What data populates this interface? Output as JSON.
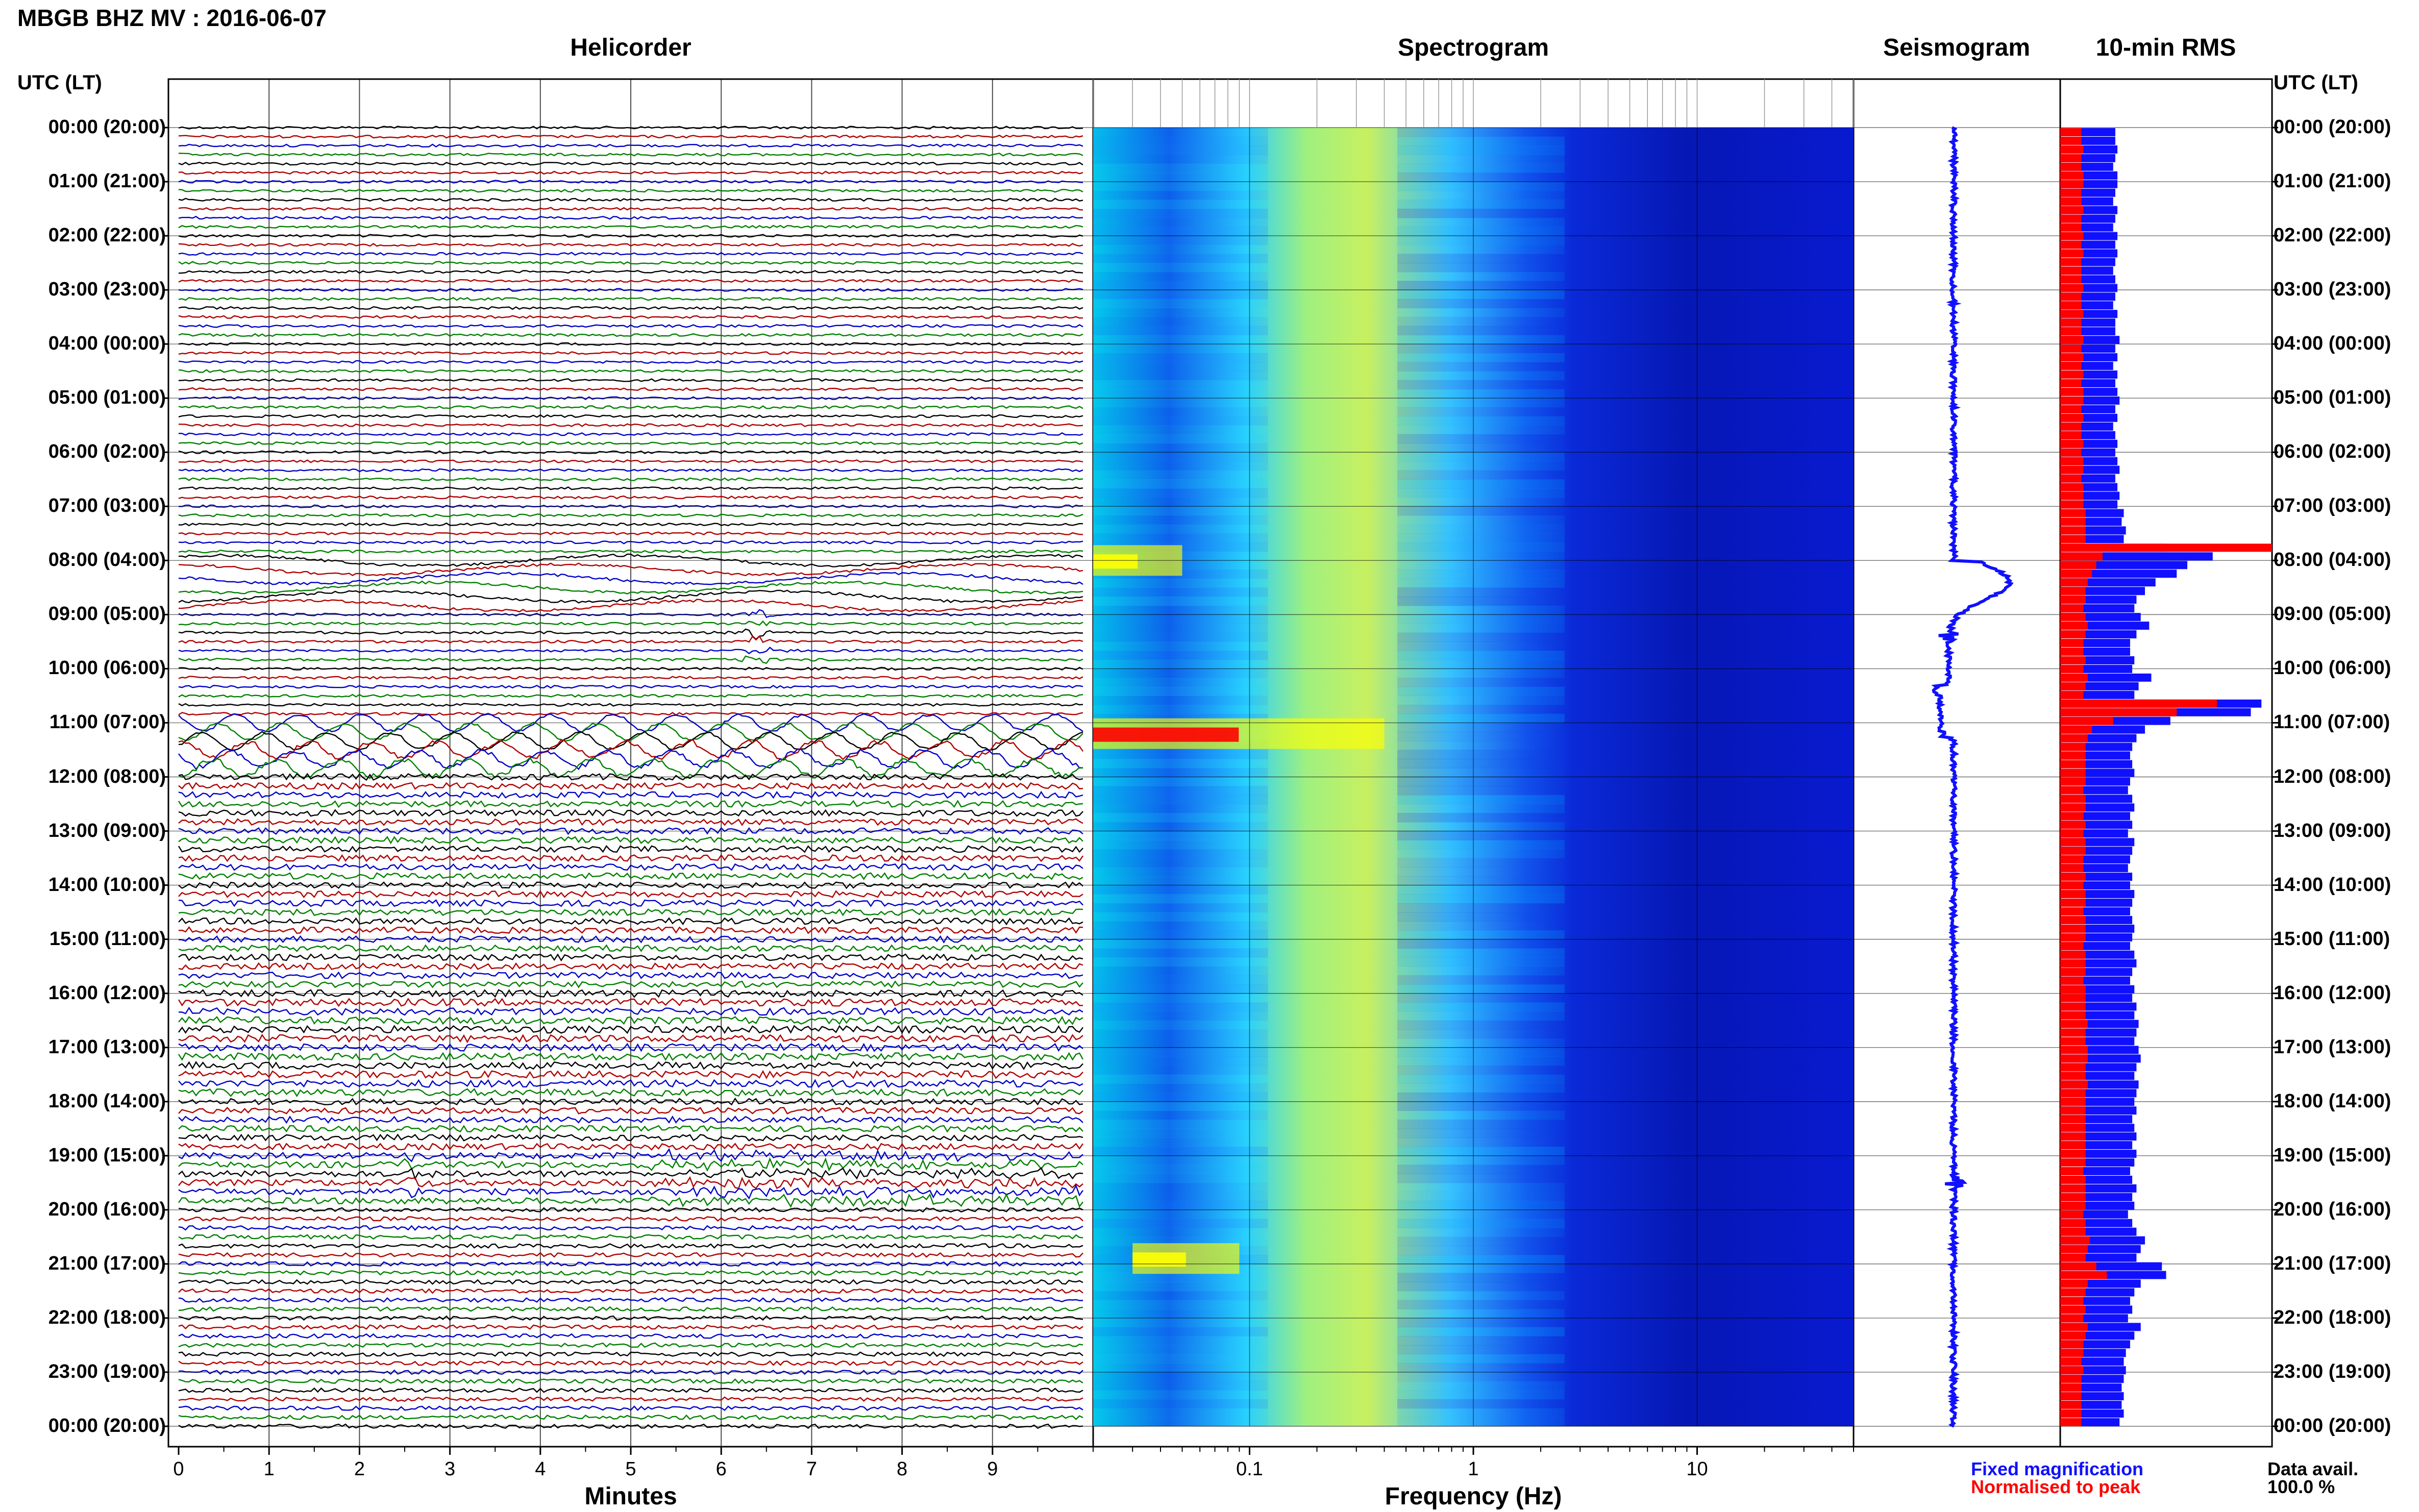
{
  "header": {
    "title": "MBGB BHZ MV : 2016-06-07"
  },
  "panels": {
    "helicorder_title": "Helicorder",
    "spectrogram_title": "Spectrogram",
    "seismogram_title": "Seismogram",
    "rms_title": "10-min RMS"
  },
  "axes": {
    "utc_label_left": "UTC (LT)",
    "utc_label_right": "UTC (LT)",
    "helicorder_xlabel": "Minutes",
    "spectrogram_xlabel": "Frequency (Hz)"
  },
  "time_labels": [
    "00:00 (20:00)",
    "01:00 (21:00)",
    "02:00 (22:00)",
    "03:00 (23:00)",
    "04:00 (00:00)",
    "05:00 (01:00)",
    "06:00 (02:00)",
    "07:00 (03:00)",
    "08:00 (04:00)",
    "09:00 (05:00)",
    "10:00 (06:00)",
    "11:00 (07:00)",
    "12:00 (08:00)",
    "13:00 (09:00)",
    "14:00 (10:00)",
    "15:00 (11:00)",
    "16:00 (12:00)",
    "17:00 (13:00)",
    "18:00 (14:00)",
    "19:00 (15:00)",
    "20:00 (16:00)",
    "21:00 (17:00)",
    "22:00 (18:00)",
    "23:00 (19:00)",
    "00:00 (20:00)"
  ],
  "legend": {
    "fixed": "Fixed magnification",
    "normalised": "Normalised to peak",
    "avail_label": "Data avail.",
    "avail_value": "100.0 %",
    "fixed_color": "#1010ff",
    "normalised_color": "#ff0000"
  },
  "chart_data": [
    {
      "type": "line",
      "name": "helicorder",
      "x_ticks": [
        "0",
        "1",
        "2",
        "3",
        "4",
        "5",
        "6",
        "7",
        "8",
        "9"
      ],
      "xlim": [
        0,
        10
      ],
      "trace_colors": [
        "#000000",
        "#b00000",
        "#0000c8",
        "#008000"
      ],
      "traces_per_hour": 6,
      "events": [
        {
          "hour": 8,
          "minute_start": 0,
          "minute_end": 10,
          "kind": "long-period swell"
        },
        {
          "hour": 9,
          "minute_start": 6.2,
          "minute_end": 7.1,
          "kind": "spike"
        },
        {
          "hour": 11,
          "minute_start": 0,
          "minute_end": 10,
          "kind": "large oscillation"
        },
        {
          "hour": 19,
          "minute_start": 2.4,
          "minute_end": 3.0,
          "kind": "spike"
        },
        {
          "hour": 19,
          "minute_start": 5.2,
          "minute_end": 10,
          "kind": "burst"
        }
      ]
    },
    {
      "type": "heatmap",
      "name": "spectrogram",
      "x_scale": "log",
      "xlim": [
        0.02,
        50
      ],
      "x_ticks": [
        0.1,
        1,
        10
      ],
      "x_tick_labels": [
        "0.1",
        "1",
        "10"
      ],
      "ylim_hours": [
        0,
        24
      ],
      "colormap": [
        "#00008c",
        "#0040ff",
        "#00c8ff",
        "#80ff80",
        "#ffff00",
        "#ff8000",
        "#ff0000"
      ],
      "hot_spots": [
        {
          "hour": 8.0,
          "freq_lo": 0.02,
          "freq_hi": 0.05,
          "level": 0.7
        },
        {
          "hour": 11.2,
          "freq_lo": 0.02,
          "freq_hi": 0.4,
          "level": 1.0
        },
        {
          "hour": 20.9,
          "freq_lo": 0.03,
          "freq_hi": 0.09,
          "level": 0.75
        }
      ]
    },
    {
      "type": "line",
      "name": "seismogram",
      "ylim_hours": [
        0,
        24
      ],
      "color": "#1010ff",
      "features": [
        {
          "hour": 8.1,
          "kind": "displacement"
        },
        {
          "hour": 9.4,
          "kind": "spike"
        },
        {
          "hour": 11.2,
          "kind": "spike"
        },
        {
          "hour": 19.5,
          "kind": "spike"
        }
      ]
    },
    {
      "type": "bar",
      "name": "rms_10min",
      "orientation": "horizontal",
      "bins_per_hour": 6,
      "series": [
        {
          "name": "Fixed magnification",
          "color": "#1010ff"
        },
        {
          "name": "Normalised to peak",
          "color": "#ff0000"
        }
      ],
      "values_fixed": [
        0.26,
        0.26,
        0.27,
        0.26,
        0.25,
        0.27,
        0.27,
        0.26,
        0.25,
        0.27,
        0.26,
        0.25,
        0.27,
        0.26,
        0.27,
        0.26,
        0.25,
        0.26,
        0.27,
        0.26,
        0.25,
        0.27,
        0.26,
        0.26,
        0.28,
        0.26,
        0.27,
        0.25,
        0.27,
        0.26,
        0.27,
        0.28,
        0.26,
        0.27,
        0.25,
        0.26,
        0.27,
        0.26,
        0.27,
        0.28,
        0.26,
        0.27,
        0.28,
        0.27,
        0.3,
        0.29,
        0.31,
        0.3,
        0.5,
        0.72,
        0.6,
        0.55,
        0.45,
        0.4,
        0.36,
        0.35,
        0.38,
        0.42,
        0.36,
        0.33,
        0.33,
        0.35,
        0.34,
        0.43,
        0.37,
        0.35,
        0.95,
        0.9,
        0.52,
        0.4,
        0.36,
        0.34,
        0.33,
        0.34,
        0.35,
        0.33,
        0.32,
        0.34,
        0.35,
        0.33,
        0.34,
        0.32,
        0.35,
        0.34,
        0.33,
        0.32,
        0.34,
        0.33,
        0.35,
        0.34,
        0.33,
        0.34,
        0.35,
        0.34,
        0.33,
        0.35,
        0.36,
        0.34,
        0.33,
        0.35,
        0.34,
        0.36,
        0.35,
        0.37,
        0.36,
        0.35,
        0.37,
        0.38,
        0.36,
        0.35,
        0.37,
        0.36,
        0.35,
        0.36,
        0.34,
        0.35,
        0.36,
        0.34,
        0.36,
        0.35,
        0.33,
        0.34,
        0.36,
        0.34,
        0.35,
        0.32,
        0.34,
        0.36,
        0.4,
        0.38,
        0.36,
        0.48,
        0.5,
        0.38,
        0.35,
        0.33,
        0.34,
        0.32,
        0.38,
        0.35,
        0.33,
        0.31,
        0.3,
        0.31,
        0.3,
        0.29,
        0.3,
        0.29,
        0.3,
        0.28
      ],
      "values_normalised": [
        0.1,
        0.1,
        0.11,
        0.1,
        0.1,
        0.11,
        0.11,
        0.1,
        0.1,
        0.11,
        0.1,
        0.1,
        0.11,
        0.1,
        0.11,
        0.1,
        0.1,
        0.1,
        0.11,
        0.1,
        0.1,
        0.11,
        0.1,
        0.1,
        0.11,
        0.1,
        0.11,
        0.1,
        0.11,
        0.1,
        0.11,
        0.11,
        0.1,
        0.11,
        0.1,
        0.1,
        0.11,
        0.1,
        0.11,
        0.11,
        0.1,
        0.11,
        0.11,
        0.11,
        0.12,
        0.12,
        0.12,
        0.12,
        1.0,
        0.2,
        0.17,
        0.15,
        0.13,
        0.12,
        0.12,
        0.11,
        0.12,
        0.13,
        0.12,
        0.11,
        0.11,
        0.12,
        0.11,
        0.13,
        0.12,
        0.11,
        0.74,
        0.55,
        0.25,
        0.15,
        0.13,
        0.12,
        0.12,
        0.12,
        0.12,
        0.12,
        0.11,
        0.12,
        0.12,
        0.11,
        0.12,
        0.11,
        0.12,
        0.12,
        0.11,
        0.11,
        0.12,
        0.11,
        0.12,
        0.12,
        0.11,
        0.12,
        0.12,
        0.12,
        0.11,
        0.12,
        0.12,
        0.12,
        0.11,
        0.12,
        0.12,
        0.12,
        0.12,
        0.13,
        0.12,
        0.12,
        0.13,
        0.13,
        0.12,
        0.12,
        0.13,
        0.12,
        0.12,
        0.12,
        0.12,
        0.12,
        0.12,
        0.12,
        0.12,
        0.12,
        0.11,
        0.12,
        0.12,
        0.12,
        0.12,
        0.11,
        0.12,
        0.12,
        0.14,
        0.13,
        0.12,
        0.17,
        0.22,
        0.13,
        0.12,
        0.11,
        0.12,
        0.11,
        0.13,
        0.12,
        0.11,
        0.11,
        0.1,
        0.11,
        0.1,
        0.1,
        0.1,
        0.1,
        0.1,
        0.1
      ]
    }
  ]
}
